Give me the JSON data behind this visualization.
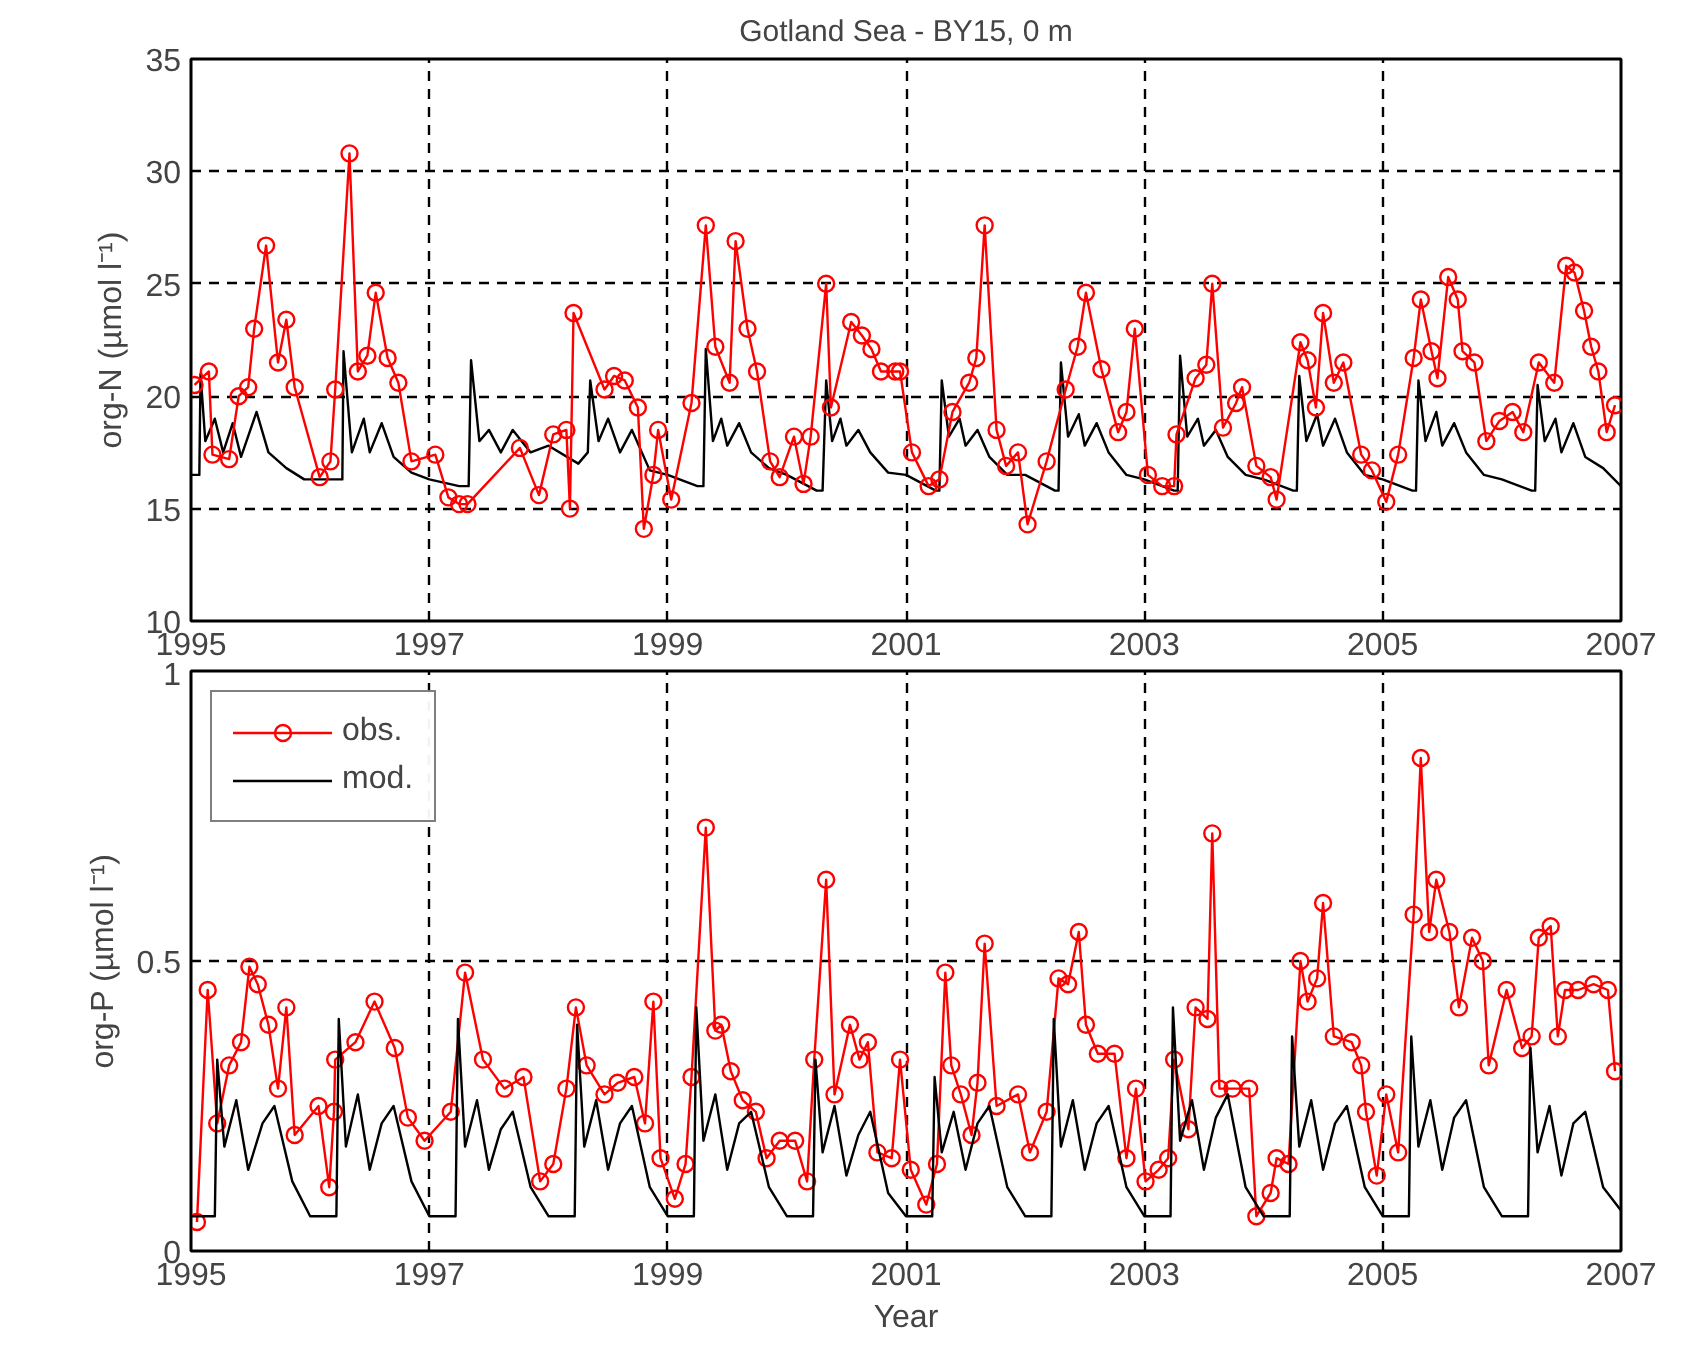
{
  "chart_data": [
    {
      "type": "line",
      "title": "Gotland Sea - BY15, 0 m",
      "ylabel": "org-N (µmol l⁻¹)",
      "xlim": [
        1995,
        2007
      ],
      "xticks": [
        1995,
        1997,
        1999,
        2001,
        2003,
        2005,
        2007
      ],
      "ylim": [
        10,
        35
      ],
      "yticks": [
        10,
        15,
        20,
        25,
        30,
        35
      ],
      "grid": true,
      "legend": false,
      "series": [
        {
          "color": "#000000",
          "marker": "none",
          "x": [
            1995.0,
            1995.07,
            1995.08,
            1995.12,
            1995.2,
            1995.27,
            1995.35,
            1995.42,
            1995.55,
            1995.65,
            1995.8,
            1995.95,
            1996.15,
            1996.27,
            1996.28,
            1996.35,
            1996.45,
            1996.5,
            1996.6,
            1996.7,
            1996.85,
            1997.0,
            1997.25,
            1997.33,
            1997.35,
            1997.42,
            1997.5,
            1997.6,
            1997.7,
            1997.85,
            1998.0,
            1998.25,
            1998.33,
            1998.35,
            1998.42,
            1998.5,
            1998.6,
            1998.7,
            1998.85,
            1999.0,
            1999.25,
            1999.3,
            1999.32,
            1999.38,
            1999.45,
            1999.5,
            1999.6,
            1999.7,
            1999.85,
            2000.0,
            2000.25,
            2000.3,
            2000.33,
            2000.38,
            2000.45,
            2000.5,
            2000.6,
            2000.7,
            2000.85,
            2001.0,
            2001.25,
            2001.28,
            2001.3,
            2001.36,
            2001.45,
            2001.5,
            2001.6,
            2001.7,
            2001.85,
            2002.0,
            2002.25,
            2002.28,
            2002.3,
            2002.36,
            2002.45,
            2002.5,
            2002.6,
            2002.7,
            2002.85,
            2003.0,
            2003.25,
            2003.28,
            2003.3,
            2003.36,
            2003.45,
            2003.5,
            2003.6,
            2003.7,
            2003.85,
            2004.0,
            2004.25,
            2004.28,
            2004.3,
            2004.36,
            2004.45,
            2004.5,
            2004.6,
            2004.7,
            2004.85,
            2005.0,
            2005.25,
            2005.28,
            2005.3,
            2005.36,
            2005.45,
            2005.5,
            2005.6,
            2005.7,
            2005.85,
            2006.0,
            2006.25,
            2006.28,
            2006.3,
            2006.36,
            2006.45,
            2006.5,
            2006.6,
            2006.7,
            2006.85,
            2007.0
          ],
          "values": [
            16.5,
            16.5,
            21.0,
            18.0,
            19.0,
            17.5,
            18.8,
            17.3,
            19.3,
            17.5,
            16.8,
            16.3,
            16.3,
            16.3,
            22.0,
            17.5,
            19.0,
            17.5,
            18.8,
            17.3,
            16.6,
            16.3,
            16.0,
            16.0,
            21.6,
            18.0,
            18.5,
            17.5,
            18.5,
            17.5,
            17.8,
            17.0,
            17.5,
            20.7,
            18.0,
            19.0,
            17.5,
            18.5,
            16.7,
            16.5,
            16.0,
            16.0,
            22.1,
            18.0,
            19.0,
            17.8,
            18.8,
            17.5,
            16.8,
            16.5,
            15.8,
            15.8,
            20.7,
            18.0,
            19.0,
            17.8,
            18.5,
            17.5,
            16.6,
            16.5,
            15.8,
            15.8,
            20.7,
            18.2,
            19.0,
            17.8,
            18.5,
            17.3,
            16.5,
            16.5,
            15.8,
            15.8,
            21.5,
            18.2,
            19.2,
            17.8,
            18.8,
            17.5,
            16.5,
            16.3,
            15.8,
            15.8,
            21.8,
            18.2,
            19.0,
            17.8,
            18.5,
            17.3,
            16.5,
            16.3,
            15.8,
            15.8,
            20.9,
            18.0,
            19.2,
            17.8,
            19.0,
            17.5,
            16.5,
            16.3,
            15.8,
            15.8,
            20.7,
            18.0,
            19.3,
            17.8,
            18.8,
            17.5,
            16.5,
            16.3,
            15.8,
            15.8,
            20.5,
            18.0,
            19.0,
            17.5,
            18.8,
            17.3,
            16.8,
            16.0
          ]
        },
        {
          "color": "#ff0000",
          "marker": "circle",
          "x": [
            1995.03,
            1995.15,
            1995.18,
            1995.32,
            1995.4,
            1995.48,
            1995.53,
            1995.63,
            1995.73,
            1995.8,
            1995.87,
            1996.08,
            1996.17,
            1996.21,
            1996.33,
            1996.4,
            1996.48,
            1996.55,
            1996.65,
            1996.74,
            1996.85,
            1997.05,
            1997.16,
            1997.25,
            1997.32,
            1997.76,
            1997.92,
            1998.04,
            1998.15,
            1998.18,
            1998.21,
            1998.47,
            1998.55,
            1998.64,
            1998.75,
            1998.8,
            1998.88,
            1998.92,
            1999.03,
            1999.2,
            1999.32,
            1999.4,
            1999.52,
            1999.57,
            1999.67,
            1999.75,
            1999.86,
            1999.94,
            2000.06,
            2000.14,
            2000.2,
            2000.33,
            2000.37,
            2000.54,
            2000.63,
            2000.71,
            2000.79,
            2000.91,
            2000.95,
            2001.05,
            2001.19,
            2001.28,
            2001.39,
            2001.53,
            2001.59,
            2001.66,
            2001.76,
            2001.84,
            2001.94,
            2002.02,
            2002.18,
            2002.34,
            2002.44,
            2002.51,
            2002.64,
            2002.78,
            2002.85,
            2002.92,
            2003.03,
            2003.15,
            2003.25,
            2003.27,
            2003.43,
            2003.52,
            2003.57,
            2003.66,
            2003.77,
            2003.82,
            2003.94,
            2004.06,
            2004.11,
            2004.31,
            2004.37,
            2004.44,
            2004.5,
            2004.59,
            2004.67,
            2004.82,
            2004.91,
            2005.03,
            2005.13,
            2005.26,
            2005.32,
            2005.41,
            2005.46,
            2005.55,
            2005.63,
            2005.67,
            2005.77,
            2005.87,
            2005.98,
            2006.09,
            2006.18,
            2006.31,
            2006.44,
            2006.54,
            2006.61,
            2006.69,
            2006.75,
            2006.81,
            2006.88,
            2006.95
          ],
          "values": [
            20.5,
            21.1,
            17.4,
            17.2,
            20.0,
            20.4,
            23.0,
            26.7,
            21.5,
            23.4,
            20.4,
            16.4,
            17.1,
            20.3,
            30.8,
            21.1,
            21.8,
            24.6,
            21.7,
            20.6,
            17.1,
            17.4,
            15.5,
            15.2,
            15.2,
            17.7,
            15.6,
            18.3,
            18.5,
            15.0,
            23.7,
            20.3,
            20.9,
            20.7,
            19.5,
            14.1,
            16.5,
            18.5,
            15.4,
            19.7,
            27.6,
            22.2,
            20.6,
            26.9,
            23.0,
            21.1,
            17.1,
            16.4,
            18.2,
            16.1,
            18.2,
            25.0,
            19.5,
            23.3,
            22.7,
            22.1,
            21.1,
            21.1,
            21.1,
            17.5,
            16.0,
            16.3,
            19.3,
            20.6,
            21.7,
            27.6,
            18.5,
            16.9,
            17.5,
            14.3,
            17.1,
            20.3,
            22.2,
            24.6,
            21.2,
            18.4,
            19.3,
            23.0,
            16.5,
            16.0,
            16.0,
            18.3,
            20.8,
            21.4,
            25.0,
            18.6,
            19.7,
            20.4,
            16.9,
            16.4,
            15.4,
            22.4,
            21.6,
            19.5,
            23.7,
            20.6,
            21.5,
            17.4,
            16.7,
            15.3,
            17.4,
            21.7,
            24.3,
            22.0,
            20.8,
            25.3,
            24.3,
            22.0,
            21.5,
            18.0,
            18.9,
            19.3,
            18.4,
            21.5,
            20.6,
            25.8,
            25.5,
            23.8,
            22.2,
            21.1,
            18.4,
            19.6
          ]
        }
      ]
    },
    {
      "type": "line",
      "xlabel": "Year",
      "ylabel": "org-P (µmol l⁻¹)",
      "xlim": [
        1995,
        2007
      ],
      "xticks": [
        1995,
        1997,
        1999,
        2001,
        2003,
        2005,
        2007
      ],
      "ylim": [
        0,
        1
      ],
      "yticks": [
        0,
        0.5,
        1
      ],
      "grid": true,
      "legend": "top left",
      "series": [
        {
          "name": "obs.",
          "color": "#ff0000",
          "marker": "circle",
          "x": [
            1995.05,
            1995.14,
            1995.22,
            1995.32,
            1995.42,
            1995.49,
            1995.56,
            1995.65,
            1995.73,
            1995.8,
            1995.87,
            1996.07,
            1996.16,
            1996.2,
            1996.21,
            1996.38,
            1996.54,
            1996.71,
            1996.82,
            1996.96,
            1997.18,
            1997.3,
            1997.45,
            1997.63,
            1997.79,
            1997.93,
            1998.04,
            1998.15,
            1998.23,
            1998.32,
            1998.47,
            1998.58,
            1998.72,
            1998.81,
            1998.88,
            1998.94,
            1999.06,
            1999.15,
            1999.2,
            1999.32,
            1999.4,
            1999.45,
            1999.53,
            1999.63,
            1999.74,
            1999.83,
            1999.94,
            2000.07,
            2000.17,
            2000.23,
            2000.33,
            2000.4,
            2000.53,
            2000.61,
            2000.68,
            2000.76,
            2000.88,
            2000.95,
            2001.04,
            2001.17,
            2001.26,
            2001.33,
            2001.38,
            2001.46,
            2001.55,
            2001.6,
            2001.66,
            2001.76,
            2001.94,
            2002.04,
            2002.18,
            2002.28,
            2002.36,
            2002.45,
            2002.51,
            2002.61,
            2002.75,
            2002.85,
            2002.93,
            2003.01,
            2003.12,
            2003.2,
            2003.25,
            2003.37,
            2003.43,
            2003.53,
            2003.57,
            2003.63,
            2003.74,
            2003.88,
            2003.94,
            2004.06,
            2004.11,
            2004.21,
            2004.31,
            2004.37,
            2004.45,
            2004.5,
            2004.59,
            2004.74,
            2004.82,
            2004.86,
            2004.95,
            2005.03,
            2005.13,
            2005.26,
            2005.32,
            2005.39,
            2005.45,
            2005.56,
            2005.64,
            2005.75,
            2005.84,
            2005.89,
            2006.04,
            2006.17,
            2006.25,
            2006.31,
            2006.41,
            2006.47,
            2006.53,
            2006.64,
            2006.77,
            2006.89,
            2006.95
          ],
          "values": [
            0.05,
            0.45,
            0.22,
            0.32,
            0.36,
            0.49,
            0.46,
            0.39,
            0.28,
            0.42,
            0.2,
            0.25,
            0.11,
            0.24,
            0.33,
            0.36,
            0.43,
            0.35,
            0.23,
            0.19,
            0.24,
            0.48,
            0.33,
            0.28,
            0.3,
            0.12,
            0.15,
            0.28,
            0.42,
            0.32,
            0.27,
            0.29,
            0.3,
            0.22,
            0.43,
            0.16,
            0.09,
            0.15,
            0.3,
            0.73,
            0.38,
            0.39,
            0.31,
            0.26,
            0.24,
            0.16,
            0.19,
            0.19,
            0.12,
            0.33,
            0.64,
            0.27,
            0.39,
            0.33,
            0.36,
            0.17,
            0.16,
            0.33,
            0.14,
            0.08,
            0.15,
            0.48,
            0.32,
            0.27,
            0.2,
            0.29,
            0.53,
            0.25,
            0.27,
            0.17,
            0.24,
            0.47,
            0.46,
            0.55,
            0.39,
            0.34,
            0.34,
            0.16,
            0.28,
            0.12,
            0.14,
            0.16,
            0.33,
            0.21,
            0.42,
            0.4,
            0.72,
            0.28,
            0.28,
            0.28,
            0.06,
            0.1,
            0.16,
            0.15,
            0.5,
            0.43,
            0.47,
            0.6,
            0.37,
            0.36,
            0.32,
            0.24,
            0.13,
            0.27,
            0.17,
            0.58,
            0.85,
            0.55,
            0.64,
            0.55,
            0.42,
            0.54,
            0.5,
            0.32,
            0.45,
            0.35,
            0.37,
            0.54,
            0.56,
            0.37,
            0.45,
            0.45,
            0.46,
            0.45,
            0.31
          ]
        },
        {
          "name": "mod.",
          "color": "#000000",
          "marker": "none",
          "x": [
            1995.0,
            1995.2,
            1995.22,
            1995.28,
            1995.38,
            1995.48,
            1995.6,
            1995.7,
            1995.85,
            1996.0,
            1996.22,
            1996.24,
            1996.3,
            1996.4,
            1996.5,
            1996.6,
            1996.7,
            1996.85,
            1997.0,
            1997.22,
            1997.24,
            1997.3,
            1997.4,
            1997.5,
            1997.6,
            1997.7,
            1997.85,
            1998.0,
            1998.22,
            1998.24,
            1998.3,
            1998.4,
            1998.5,
            1998.6,
            1998.7,
            1998.85,
            1999.0,
            1999.22,
            1999.24,
            1999.3,
            1999.4,
            1999.5,
            1999.6,
            1999.7,
            1999.85,
            2000.0,
            2000.22,
            2000.24,
            2000.3,
            2000.4,
            2000.5,
            2000.6,
            2000.7,
            2000.85,
            2001.0,
            2001.22,
            2001.24,
            2001.3,
            2001.4,
            2001.5,
            2001.6,
            2001.7,
            2001.85,
            2002.0,
            2002.22,
            2002.24,
            2002.3,
            2002.4,
            2002.5,
            2002.6,
            2002.7,
            2002.85,
            2003.0,
            2003.22,
            2003.24,
            2003.3,
            2003.4,
            2003.5,
            2003.6,
            2003.7,
            2003.85,
            2004.0,
            2004.22,
            2004.24,
            2004.3,
            2004.4,
            2004.5,
            2004.6,
            2004.7,
            2004.85,
            2005.0,
            2005.22,
            2005.24,
            2005.3,
            2005.4,
            2005.5,
            2005.6,
            2005.7,
            2005.85,
            2006.0,
            2006.22,
            2006.24,
            2006.3,
            2006.4,
            2006.5,
            2006.6,
            2006.7,
            2006.85,
            2007.0
          ],
          "values": [
            0.06,
            0.06,
            0.33,
            0.18,
            0.26,
            0.14,
            0.22,
            0.25,
            0.12,
            0.06,
            0.06,
            0.4,
            0.18,
            0.27,
            0.14,
            0.22,
            0.25,
            0.12,
            0.06,
            0.06,
            0.4,
            0.18,
            0.26,
            0.14,
            0.21,
            0.24,
            0.11,
            0.06,
            0.06,
            0.39,
            0.18,
            0.26,
            0.14,
            0.22,
            0.25,
            0.11,
            0.06,
            0.06,
            0.42,
            0.19,
            0.27,
            0.14,
            0.22,
            0.24,
            0.11,
            0.06,
            0.06,
            0.33,
            0.17,
            0.25,
            0.13,
            0.2,
            0.24,
            0.1,
            0.06,
            0.06,
            0.3,
            0.17,
            0.24,
            0.14,
            0.22,
            0.25,
            0.11,
            0.06,
            0.06,
            0.4,
            0.18,
            0.26,
            0.14,
            0.22,
            0.25,
            0.11,
            0.06,
            0.06,
            0.42,
            0.19,
            0.26,
            0.14,
            0.23,
            0.27,
            0.11,
            0.06,
            0.06,
            0.37,
            0.18,
            0.26,
            0.14,
            0.22,
            0.25,
            0.11,
            0.06,
            0.06,
            0.37,
            0.18,
            0.26,
            0.14,
            0.23,
            0.26,
            0.11,
            0.06,
            0.06,
            0.35,
            0.17,
            0.25,
            0.13,
            0.22,
            0.24,
            0.11,
            0.07
          ]
        }
      ]
    }
  ]
}
